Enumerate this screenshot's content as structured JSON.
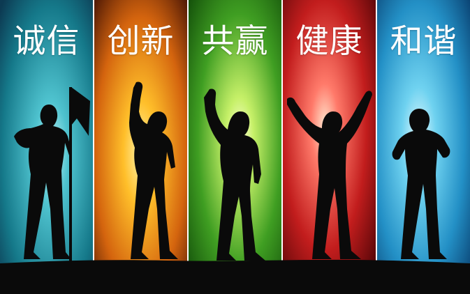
{
  "panels": [
    {
      "label": "诚信",
      "gradient": [
        "#1d8f9a",
        "#0e3f57",
        "#7fd9e2"
      ]
    },
    {
      "label": "创新",
      "gradient": [
        "#d86a10",
        "#5a1d05",
        "#ffd35a"
      ]
    },
    {
      "label": "共赢",
      "gradient": [
        "#4aa628",
        "#155a0c",
        "#e8ffa8"
      ]
    },
    {
      "label": "健康",
      "gradient": [
        "#c62020",
        "#5a0608",
        "#ffd0b0"
      ]
    },
    {
      "label": "和谐",
      "gradient": [
        "#2a9fd0",
        "#0a4a7a",
        "#b8ecff"
      ]
    }
  ],
  "colors": {
    "silhouette": "#0a0a0a",
    "divider": "#ffffff",
    "background": "#ffffff"
  }
}
